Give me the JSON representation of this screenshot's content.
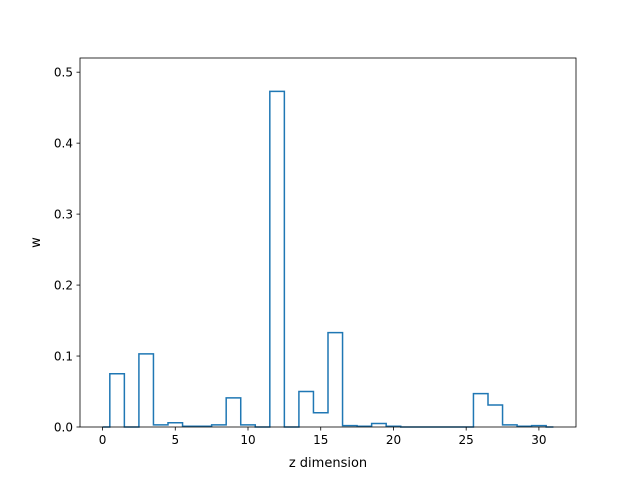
{
  "chart_data": {
    "type": "line",
    "drawstyle": "steps-mid",
    "xlabel": "z dimension",
    "ylabel": "w",
    "xlim": [
      -1.55,
      32.55
    ],
    "ylim": [
      0,
      0.52
    ],
    "xticks": [
      0,
      5,
      10,
      15,
      20,
      25,
      30
    ],
    "xtick_labels": [
      "0",
      "5",
      "10",
      "15",
      "20",
      "25",
      "30"
    ],
    "yticks": [
      0.0,
      0.1,
      0.2,
      0.3,
      0.4,
      0.5
    ],
    "ytick_labels": [
      "0.0",
      "0.1",
      "0.2",
      "0.3",
      "0.4",
      "0.5"
    ],
    "grid": false,
    "series": [
      {
        "color": "#1f77b4",
        "x": [
          0,
          1,
          2,
          3,
          4,
          5,
          6,
          7,
          8,
          9,
          10,
          11,
          12,
          13,
          14,
          15,
          16,
          17,
          18,
          19,
          20,
          21,
          22,
          23,
          24,
          25,
          26,
          27,
          28,
          29,
          30,
          31
        ],
        "y": [
          0.0,
          0.075,
          0.0,
          0.103,
          0.003,
          0.006,
          0.001,
          0.001,
          0.003,
          0.041,
          0.003,
          0.0,
          0.473,
          0.0,
          0.05,
          0.02,
          0.133,
          0.002,
          0.001,
          0.005,
          0.001,
          0.0,
          0.0,
          0.0,
          0.0,
          0.0,
          0.047,
          0.031,
          0.003,
          0.001,
          0.002,
          0.0
        ]
      }
    ]
  }
}
